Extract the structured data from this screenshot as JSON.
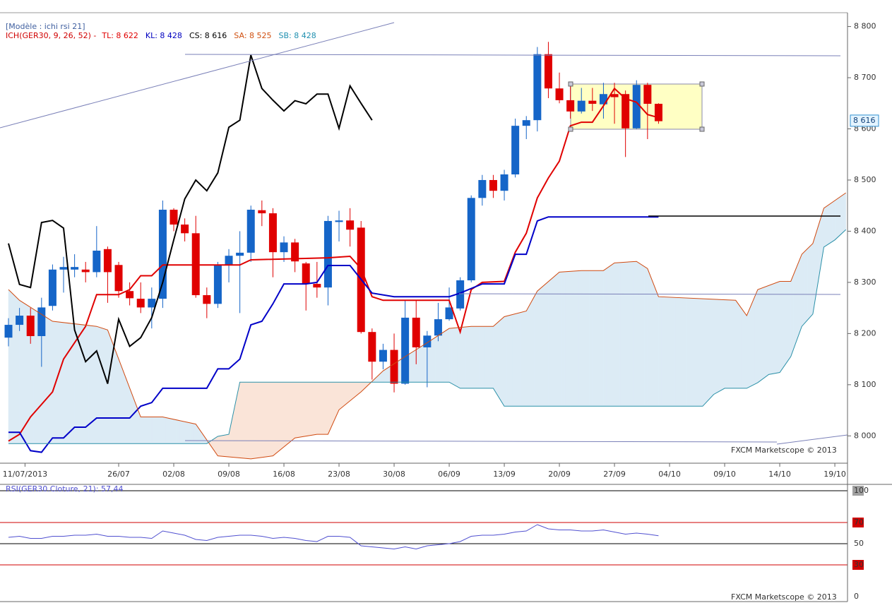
{
  "title": "[Modèle : ichi rsi 21]",
  "watermark": "FXCM Marketscope © 2013",
  "chart_data": [
    {
      "type": "candlestick",
      "indicator": "ICH(GER30, 9, 26, 52) -",
      "indicator_color": "#d00000",
      "readouts": [
        {
          "text": "TL: 8 622",
          "color": "#e00000"
        },
        {
          "text": "KL: 8 428",
          "color": "#0000c0"
        },
        {
          "text": "CS: 8 616",
          "color": "#000000"
        },
        {
          "text": "SA: 8 525",
          "color": "#d05010"
        },
        {
          "text": "SB: 8 428",
          "color": "#2090b0"
        }
      ],
      "up_color": "#1565c8",
      "down_color": "#e00000",
      "x": [
        0,
        1,
        2,
        3,
        4,
        5,
        6,
        7,
        8,
        9,
        10,
        11,
        12,
        13,
        14,
        15,
        16,
        17,
        18,
        19,
        20,
        21,
        22,
        23,
        24,
        25,
        26,
        27,
        28,
        29,
        30,
        31,
        32,
        33,
        34,
        35,
        36,
        37,
        38,
        39,
        40,
        41,
        42,
        43,
        44,
        45,
        46,
        47,
        48,
        49,
        50,
        51,
        52,
        53,
        54,
        55,
        56,
        57,
        58,
        59
      ],
      "open": [
        8192,
        8217,
        8235,
        8195,
        8254,
        8325,
        8325,
        8325,
        8320,
        8365,
        8334,
        8283,
        8268,
        8251,
        8268,
        8442,
        8413,
        8396,
        8275,
        8258,
        8334,
        8352,
        8358,
        8441,
        8435,
        8359,
        8378,
        8337,
        8297,
        8290,
        8418,
        8421,
        8407,
        8203,
        8145,
        8168,
        8102,
        8231,
        8173,
        8196,
        8228,
        8249,
        8304,
        8465,
        8500,
        8479,
        8511,
        8606,
        8617,
        8746,
        8679,
        8656,
        8634,
        8655,
        8648,
        8668,
        8668,
        8601,
        8686,
        8649
      ],
      "high": [
        8230,
        8250,
        8250,
        8270,
        8335,
        8350,
        8355,
        8340,
        8410,
        8370,
        8340,
        8300,
        8300,
        8290,
        8460,
        8445,
        8425,
        8430,
        8290,
        8340,
        8365,
        8400,
        8450,
        8460,
        8445,
        8390,
        8385,
        8340,
        8340,
        8430,
        8440,
        8445,
        8420,
        8210,
        8180,
        8200,
        8265,
        8265,
        8205,
        8260,
        8290,
        8310,
        8470,
        8510,
        8510,
        8520,
        8620,
        8625,
        8760,
        8770,
        8710,
        8690,
        8680,
        8680,
        8690,
        8690,
        8675,
        8695,
        8690,
        8650
      ],
      "low": [
        8175,
        8205,
        8180,
        8135,
        8245,
        8280,
        8310,
        8300,
        8310,
        8260,
        8270,
        8255,
        8240,
        8210,
        8250,
        8400,
        8380,
        8270,
        8230,
        8250,
        8300,
        8240,
        8340,
        8410,
        8310,
        8340,
        8320,
        8245,
        8270,
        8255,
        8380,
        8370,
        8200,
        8110,
        8130,
        8085,
        8100,
        8140,
        8095,
        8185,
        8225,
        8245,
        8300,
        8450,
        8465,
        8460,
        8505,
        8580,
        8595,
        8660,
        8650,
        8620,
        8630,
        8635,
        8620,
        8610,
        8545,
        8600,
        8580,
        8610
      ],
      "close": [
        8217,
        8235,
        8195,
        8251,
        8325,
        8330,
        8330,
        8320,
        8362,
        8320,
        8283,
        8269,
        8251,
        8268,
        8442,
        8413,
        8396,
        8275,
        8258,
        8334,
        8352,
        8358,
        8442,
        8435,
        8359,
        8378,
        8341,
        8297,
        8290,
        8420,
        8421,
        8403,
        8203,
        8145,
        8168,
        8102,
        8231,
        8173,
        8196,
        8228,
        8251,
        8304,
        8465,
        8500,
        8479,
        8511,
        8606,
        8617,
        8746,
        8679,
        8656,
        8634,
        8655,
        8649,
        8668,
        8662,
        8601,
        8686,
        8649,
        8615
      ],
      "series": [
        {
          "color": "#e00000",
          "width": 2,
          "x": [
            0,
            1,
            2,
            4,
            5,
            7,
            8,
            10,
            11,
            12,
            13,
            14,
            21,
            22,
            29,
            31,
            32,
            33,
            34,
            40,
            41,
            42,
            43,
            45,
            46,
            47,
            48,
            49,
            50,
            51,
            52,
            53,
            54,
            55,
            56,
            57,
            58,
            59
          ],
          "values": [
            7990,
            8003,
            8037,
            8086,
            8150,
            8214,
            8276,
            8276,
            8286,
            8313,
            8313,
            8334,
            8334,
            8344,
            8348,
            8351,
            8327,
            8272,
            8265,
            8265,
            8203,
            8286,
            8300,
            8302,
            8359,
            8396,
            8465,
            8504,
            8537,
            8606,
            8613,
            8613,
            8645,
            8679,
            8659,
            8652,
            8628,
            8622
          ]
        },
        {
          "color": "#0000c8",
          "width": 2,
          "x": [
            0,
            1,
            2,
            3,
            4,
            5,
            6,
            7,
            8,
            11,
            12,
            13,
            14,
            18,
            19,
            20,
            21,
            22,
            23,
            24,
            25,
            27,
            28,
            29,
            31,
            33,
            35,
            40,
            41,
            43,
            45,
            46,
            47,
            48,
            49,
            59
          ],
          "values": [
            8007,
            8007,
            7971,
            7968,
            7996,
            7996,
            8017,
            8017,
            8035,
            8035,
            8058,
            8065,
            8093,
            8093,
            8131,
            8131,
            8150,
            8217,
            8224,
            8258,
            8297,
            8297,
            8300,
            8333,
            8333,
            8279,
            8272,
            8272,
            8279,
            8297,
            8297,
            8355,
            8355,
            8420,
            8428,
            8428
          ]
        },
        {
          "color": "#d04a10",
          "width": 1,
          "x": [
            0,
            1,
            4,
            8,
            9,
            12,
            14,
            17,
            19,
            22,
            24,
            26,
            28,
            29,
            30,
            32,
            34,
            36,
            38,
            40,
            42,
            44,
            45,
            47,
            48,
            50,
            52,
            54,
            55,
            57,
            58,
            59,
            66,
            67,
            68,
            70,
            71,
            72,
            73,
            74,
            75,
            76
          ],
          "values": [
            8286,
            8265,
            8224,
            8214,
            8207,
            8037,
            8037,
            8023,
            7961,
            7955,
            7961,
            7996,
            8003,
            8003,
            8051,
            8086,
            8127,
            8155,
            8182,
            8210,
            8214,
            8214,
            8233,
            8244,
            8283,
            8320,
            8323,
            8323,
            8338,
            8341,
            8327,
            8272,
            8265,
            8235,
            8286,
            8302,
            8302,
            8355,
            8376,
            8445,
            8460,
            8475
          ]
        },
        {
          "color": "#2a90a8",
          "width": 1,
          "x": [
            0,
            18,
            19,
            20,
            21,
            40,
            41,
            44,
            45,
            63,
            64,
            65,
            67,
            68,
            69,
            70,
            71,
            72,
            73,
            74,
            75,
            76
          ],
          "values": [
            7985,
            7985,
            7999,
            8003,
            8105,
            8105,
            8093,
            8093,
            8058,
            8058,
            8081,
            8093,
            8093,
            8104,
            8120,
            8124,
            8155,
            8214,
            8238,
            8369,
            8383,
            8403
          ]
        },
        {
          "color": "#000000",
          "width": 2,
          "x": [
            0,
            1,
            2,
            3,
            4,
            5,
            6,
            7,
            8,
            9,
            10,
            11,
            12,
            13,
            14,
            15,
            16,
            17,
            18,
            19,
            20,
            21,
            22,
            23,
            24,
            25,
            26,
            27,
            28,
            29,
            30,
            31,
            32,
            33
          ],
          "values": [
            8376,
            8296,
            8290,
            8417,
            8421,
            8406,
            8207,
            8145,
            8166,
            8102,
            8228,
            8175,
            8192,
            8231,
            8300,
            8383,
            8463,
            8500,
            8479,
            8514,
            8603,
            8617,
            8744,
            8679,
            8656,
            8635,
            8655,
            8649,
            8668,
            8668,
            8601,
            8684,
            8650,
            8617
          ]
        }
      ],
      "cloud_colors": {
        "up": "#dcebf5",
        "down": "#fae4d8"
      },
      "last_price": {
        "value": 8616,
        "label": "8 616"
      },
      "xlim": [
        -0.77,
        76.15
      ],
      "xticks": [
        {
          "value": 1.5,
          "label": "11/07/2013"
        },
        {
          "value": 10,
          "label": "26/07"
        },
        {
          "value": 15,
          "label": "02/08"
        },
        {
          "value": 20,
          "label": "09/08"
        },
        {
          "value": 25,
          "label": "16/08"
        },
        {
          "value": 30,
          "label": "23/08"
        },
        {
          "value": 35,
          "label": "30/08"
        },
        {
          "value": 40,
          "label": "06/09"
        },
        {
          "value": 45,
          "label": "13/09"
        },
        {
          "value": 50,
          "label": "20/09"
        },
        {
          "value": 55,
          "label": "27/09"
        },
        {
          "value": 60,
          "label": "04/10"
        },
        {
          "value": 65,
          "label": "09/10"
        },
        {
          "value": 70,
          "label": "14/10"
        },
        {
          "value": 75,
          "label": "19/10"
        }
      ],
      "ylim": [
        7948,
        8827
      ],
      "yticks": [
        {
          "value": 8000,
          "label": "8 000"
        },
        {
          "value": 8100,
          "label": "8 100"
        },
        {
          "value": 8200,
          "label": "8 200"
        },
        {
          "value": 8300,
          "label": "8 300"
        },
        {
          "value": 8400,
          "label": "8 400"
        },
        {
          "value": 8500,
          "label": "8 500"
        },
        {
          "value": 8600,
          "label": "8 600"
        },
        {
          "value": 8700,
          "label": "8 700"
        },
        {
          "value": 8800,
          "label": "8 800"
        }
      ]
    },
    {
      "type": "line",
      "title": "RSI(GER30.Cloture, 21): 57,44",
      "color": "#5050d0",
      "x": [
        0,
        1,
        2,
        3,
        4,
        5,
        6,
        7,
        8,
        9,
        10,
        11,
        12,
        13,
        14,
        15,
        16,
        17,
        18,
        19,
        20,
        21,
        22,
        23,
        24,
        25,
        26,
        27,
        28,
        29,
        30,
        31,
        32,
        33,
        34,
        35,
        36,
        37,
        38,
        39,
        40,
        41,
        42,
        43,
        44,
        45,
        46,
        47,
        48,
        49,
        50,
        51,
        52,
        53,
        54,
        55,
        56,
        57,
        58,
        59
      ],
      "values": [
        56,
        57,
        55,
        55,
        57,
        57,
        58,
        58,
        59,
        57,
        57,
        56,
        56,
        55,
        62,
        60,
        58,
        54,
        53,
        56,
        57,
        58,
        58,
        57,
        55,
        56,
        55,
        53,
        52,
        57,
        57,
        56,
        48,
        47,
        46,
        45,
        47,
        45,
        48,
        49,
        50,
        52,
        57,
        58,
        58,
        59,
        61,
        62,
        68,
        64,
        63,
        63,
        62,
        62,
        63,
        61,
        59,
        60,
        59,
        57.44
      ],
      "xlim": [
        -0.77,
        76.15
      ],
      "ylim": [
        0,
        100
      ],
      "yticks": [
        0,
        30,
        50,
        70,
        100
      ],
      "ytick_line_colors": [
        "none",
        "#d00000",
        "#000000",
        "#d00000",
        "#000000"
      ],
      "ytick_box_colors": [
        "none",
        "#d00000",
        "none",
        "#d00000",
        "#a0a0a0"
      ]
    }
  ]
}
